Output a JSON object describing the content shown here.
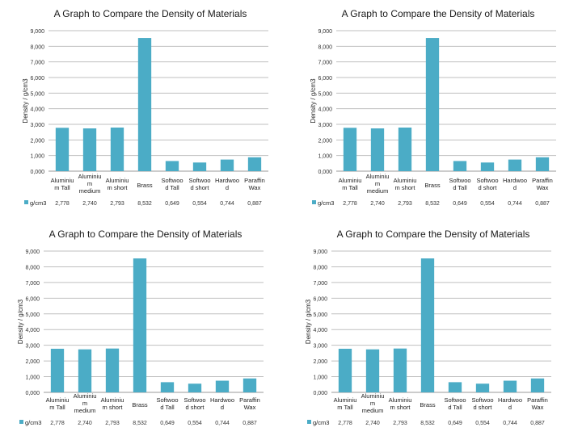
{
  "chart_data": [
    {
      "type": "bar",
      "title": "A Graph to Compare the Density of Materials",
      "ylabel": "Density / g/cm3",
      "xlabel": "",
      "ylim": [
        0,
        9000
      ],
      "yticks": [
        "0,000",
        "1,000",
        "2,000",
        "3,000",
        "4,000",
        "5,000",
        "6,000",
        "7,000",
        "8,000",
        "9,000"
      ],
      "grid": true,
      "categories": [
        [
          "Aluminiu",
          "m Tall"
        ],
        [
          "Aluminiu",
          "m",
          "medium"
        ],
        [
          "Aluminiu",
          "m short"
        ],
        [
          "Brass"
        ],
        [
          "Softwoo",
          "d Tall"
        ],
        [
          "Softwoo",
          "d short"
        ],
        [
          "Hardwoo",
          "d"
        ],
        [
          "Paraffin",
          "Wax"
        ]
      ],
      "series": [
        {
          "name": "g/cm3",
          "values": [
            2778,
            2740,
            2793,
            8532,
            649,
            554,
            744,
            887
          ],
          "labels": [
            "2,778",
            "2,740",
            "2,793",
            "8,532",
            "0,649",
            "0,554",
            "0,744",
            "0,887"
          ]
        }
      ],
      "color": "#4bacc6"
    },
    {
      "type": "bar",
      "title": "A Graph to Compare the Density of Materials",
      "ylabel": "Density / g/cm3",
      "xlabel": "",
      "ylim": [
        0,
        9000
      ],
      "yticks": [
        "0,000",
        "1,000",
        "2,000",
        "3,000",
        "4,000",
        "5,000",
        "6,000",
        "7,000",
        "8,000",
        "9,000"
      ],
      "grid": true,
      "categories": [
        [
          "Aluminiu",
          "m Tall"
        ],
        [
          "Aluminiu",
          "m",
          "medium"
        ],
        [
          "Aluminiu",
          "m short"
        ],
        [
          "Brass"
        ],
        [
          "Softwoo",
          "d Tall"
        ],
        [
          "Softwoo",
          "d short"
        ],
        [
          "Hardwoo",
          "d"
        ],
        [
          "Paraffin",
          "Wax"
        ]
      ],
      "series": [
        {
          "name": "g/cm3",
          "values": [
            2778,
            2740,
            2793,
            8532,
            649,
            554,
            744,
            887
          ],
          "labels": [
            "2,778",
            "2,740",
            "2,793",
            "8,532",
            "0,649",
            "0,554",
            "0,744",
            "0,887"
          ]
        }
      ],
      "color": "#4bacc6"
    },
    {
      "type": "bar",
      "title": "A Graph to Compare the Density of Materials",
      "ylabel": "Density / g/cm3",
      "xlabel": "",
      "ylim": [
        0,
        9000
      ],
      "yticks": [
        "0,000",
        "1,000",
        "2,000",
        "3,000",
        "4,000",
        "5,000",
        "6,000",
        "7,000",
        "8,000",
        "9,000"
      ],
      "grid": true,
      "categories": [
        [
          "Aluminiu",
          "m Tall"
        ],
        [
          "Aluminiu",
          "m",
          "medium"
        ],
        [
          "Aluminiu",
          "m short"
        ],
        [
          "Brass"
        ],
        [
          "Softwoo",
          "d Tall"
        ],
        [
          "Softwoo",
          "d short"
        ],
        [
          "Hardwoo",
          "d"
        ],
        [
          "Paraffin",
          "Wax"
        ]
      ],
      "series": [
        {
          "name": "g/cm3",
          "values": [
            2778,
            2740,
            2793,
            8532,
            649,
            554,
            744,
            887
          ],
          "labels": [
            "2,778",
            "2,740",
            "2,793",
            "8,532",
            "0,649",
            "0,554",
            "0,744",
            "0,887"
          ]
        }
      ],
      "color": "#4bacc6"
    },
    {
      "type": "bar",
      "title": "A Graph to Compare the Density of Materials",
      "ylabel": "Density / g/cm3",
      "xlabel": "",
      "ylim": [
        0,
        9000
      ],
      "yticks": [
        "0,000",
        "1,000",
        "2,000",
        "3,000",
        "4,000",
        "5,000",
        "6,000",
        "7,000",
        "8,000",
        "9,000"
      ],
      "grid": true,
      "categories": [
        [
          "Aluminiu",
          "m Tall"
        ],
        [
          "Aluminiu",
          "m",
          "medium"
        ],
        [
          "Aluminiu",
          "m short"
        ],
        [
          "Brass"
        ],
        [
          "Softwoo",
          "d Tall"
        ],
        [
          "Softwoo",
          "d short"
        ],
        [
          "Hardwoo",
          "d"
        ],
        [
          "Paraffin",
          "Wax"
        ]
      ],
      "series": [
        {
          "name": "g/cm3",
          "values": [
            2778,
            2740,
            2793,
            8532,
            649,
            554,
            744,
            887
          ],
          "labels": [
            "2,778",
            "2,740",
            "2,793",
            "8,532",
            "0,649",
            "0,554",
            "0,744",
            "0,887"
          ]
        }
      ],
      "color": "#4bacc6"
    }
  ]
}
